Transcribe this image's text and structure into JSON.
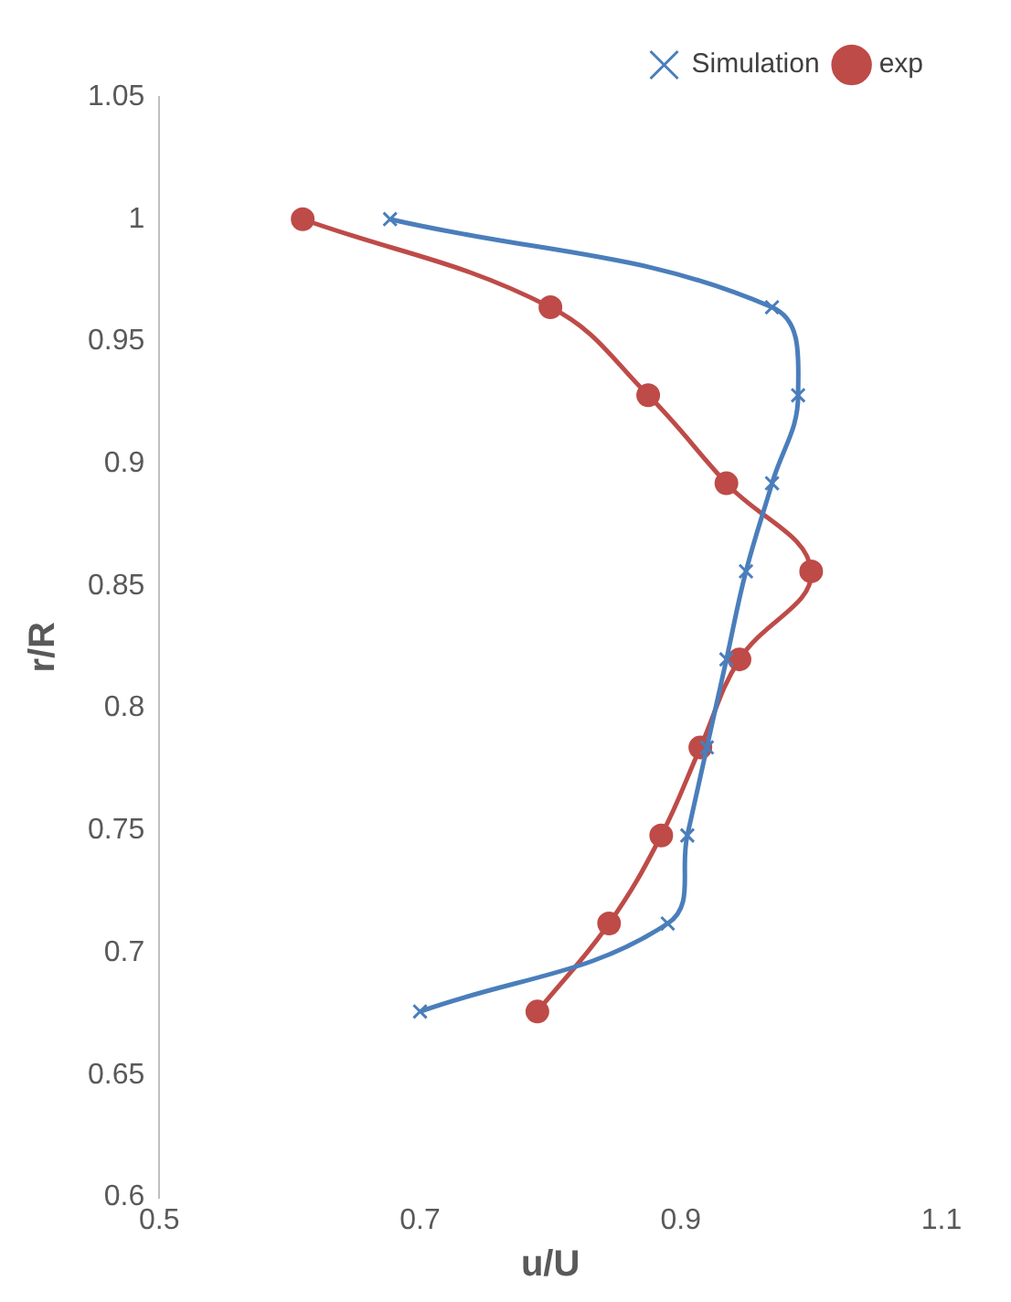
{
  "chart_data": {
    "type": "line",
    "xlabel": "u/U",
    "ylabel": "r/R",
    "xlim": [
      0.5,
      1.1
    ],
    "xticks": [
      0.5,
      0.7,
      0.9,
      1.1
    ],
    "ylim": [
      0.6,
      1.05
    ],
    "yticks": [
      0.6,
      0.65,
      0.7,
      0.75,
      0.8,
      0.85,
      0.9,
      0.95,
      1,
      1.05
    ],
    "grid": false,
    "legend": "top right",
    "series": [
      {
        "name": "Simulation",
        "color": "#4a7ebb",
        "marker": "cross",
        "x": [
          0.677,
          0.97,
          0.99,
          0.97,
          0.95,
          0.935,
          0.92,
          0.905,
          0.89,
          0.7
        ],
        "values": [
          1,
          0.964,
          0.928,
          0.892,
          0.856,
          0.82,
          0.784,
          0.748,
          0.712,
          0.676
        ]
      },
      {
        "name": "exp",
        "color": "#be4b48",
        "marker": "circle",
        "x": [
          0.61,
          0.8,
          0.875,
          0.935,
          1.0,
          0.945,
          0.915,
          0.885,
          0.845,
          0.79
        ],
        "values": [
          1,
          0.964,
          0.928,
          0.892,
          0.856,
          0.82,
          0.784,
          0.748,
          0.712,
          0.676
        ]
      }
    ]
  }
}
